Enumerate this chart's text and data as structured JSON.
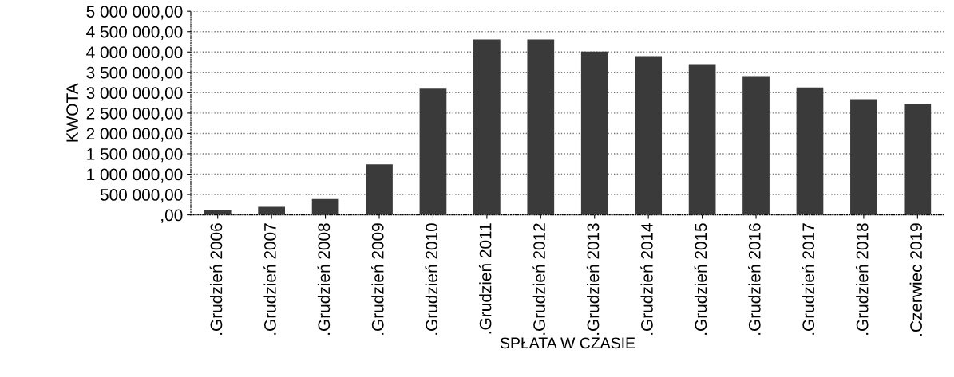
{
  "chart_data": {
    "type": "bar",
    "xlabel": "SPŁATA W CZASIE",
    "ylabel": "KWOTA",
    "categories": [
      ".Grudzień 2006",
      ".Grudzień 2007",
      ".Grudzień 2008",
      ".Grudzień 2009",
      ".Grudzień 2010",
      ".Grudzień 2011",
      ".Grudzień 2012",
      ".Grudzień 2013",
      ".Grudzień 2014",
      ".Grudzień 2015",
      ".Grudzień 2016",
      ".Grudzień 2017",
      ".Grudzień 2018",
      ".Czerwiec 2019"
    ],
    "values": [
      110000,
      200000,
      390000,
      1240000,
      3100000,
      4310000,
      4310000,
      4010000,
      3900000,
      3700000,
      3410000,
      3130000,
      2840000,
      2730000
    ],
    "color": "#3a3a3a",
    "ylim": [
      0,
      5000000
    ],
    "yticks": [
      {
        "value": 0,
        "label": ",00"
      },
      {
        "value": 500000,
        "label": "500 000,00"
      },
      {
        "value": 1000000,
        "label": "1 000 000,00"
      },
      {
        "value": 1500000,
        "label": "1 500 000,00"
      },
      {
        "value": 2000000,
        "label": "2 000 000,00"
      },
      {
        "value": 2500000,
        "label": "2 500 000,00"
      },
      {
        "value": 3000000,
        "label": "3 000 000,00"
      },
      {
        "value": 3500000,
        "label": "3 500 000,00"
      },
      {
        "value": 4000000,
        "label": "4 000 000,00"
      },
      {
        "value": 4500000,
        "label": "4 500 000,00"
      },
      {
        "value": 5000000,
        "label": "5 000 000,00"
      }
    ],
    "grid": "y"
  }
}
